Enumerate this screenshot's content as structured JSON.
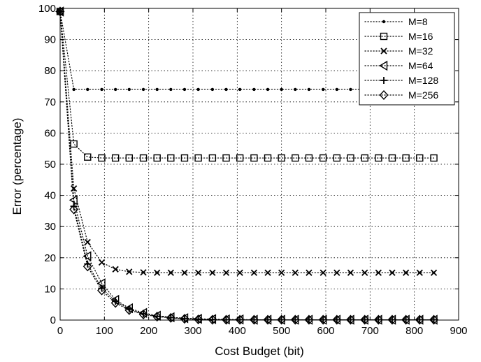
{
  "chart_data": {
    "type": "line",
    "title": "",
    "xlabel": "Cost Budget (bit)",
    "ylabel": "Error (percentage)",
    "xlim": [
      0,
      900
    ],
    "ylim": [
      0,
      100
    ],
    "xticks": [
      0,
      100,
      200,
      300,
      400,
      500,
      600,
      700,
      800,
      900
    ],
    "yticks": [
      0,
      10,
      20,
      30,
      40,
      50,
      60,
      70,
      80,
      90,
      100
    ],
    "grid": true,
    "legend_position": "top-right",
    "x": [
      0,
      31,
      62,
      94,
      125,
      156,
      188,
      219,
      250,
      281,
      312,
      344,
      375,
      406,
      438,
      469,
      500,
      531,
      562,
      594,
      625,
      656,
      688,
      719,
      750,
      781,
      812,
      844
    ],
    "series": [
      {
        "name": "M=8",
        "marker": "dot",
        "values": [
          99,
          74,
          74,
          74,
          74,
          74,
          74,
          74,
          74,
          74,
          74,
          74,
          74,
          74,
          74,
          74,
          74,
          74,
          74,
          74,
          74,
          74,
          74,
          74,
          74,
          74,
          74,
          74
        ]
      },
      {
        "name": "M=16",
        "marker": "square",
        "values": [
          99,
          56.5,
          52.3,
          52,
          52,
          52,
          52,
          52,
          52,
          52,
          52,
          52,
          52,
          52,
          52,
          52,
          52,
          52,
          52,
          52,
          52,
          52,
          52,
          52,
          52,
          52,
          52,
          52
        ]
      },
      {
        "name": "M=32",
        "marker": "x",
        "values": [
          99,
          42.2,
          25,
          18.5,
          16.3,
          15.5,
          15.3,
          15.2,
          15.2,
          15.2,
          15.2,
          15.2,
          15.2,
          15.2,
          15.2,
          15.2,
          15.2,
          15.2,
          15.2,
          15.2,
          15.2,
          15.2,
          15.2,
          15.2,
          15.2,
          15.2,
          15.2,
          15.2
        ]
      },
      {
        "name": "M=64",
        "marker": "triangle-left",
        "values": [
          99,
          38.5,
          20.5,
          11.8,
          6.5,
          3.8,
          2.3,
          1.4,
          0.9,
          0.6,
          0.4,
          0.3,
          0.2,
          0.2,
          0.1,
          0.1,
          0.1,
          0.1,
          0.1,
          0.1,
          0.1,
          0.1,
          0.1,
          0.1,
          0.1,
          0.1,
          0.1,
          0.1
        ]
      },
      {
        "name": "M=128",
        "marker": "plus",
        "values": [
          99,
          36.5,
          18,
          10.2,
          6,
          3.5,
          2,
          1.2,
          0.8,
          0.5,
          0.3,
          0.2,
          0.1,
          0.1,
          0.1,
          0.1,
          0.1,
          0.1,
          0.1,
          0.1,
          0.1,
          0.1,
          0.1,
          0.1,
          0.1,
          0.1,
          0.1,
          0.1
        ]
      },
      {
        "name": "M=256",
        "marker": "diamond",
        "values": [
          99,
          35.5,
          17.2,
          9.5,
          5.5,
          3.2,
          1.8,
          1.1,
          0.7,
          0.4,
          0.2,
          0.1,
          0.1,
          0.1,
          0.1,
          0.1,
          0.1,
          0.1,
          0.1,
          0.1,
          0.1,
          0.1,
          0.1,
          0.1,
          0.1,
          0.1,
          0.1,
          0.1
        ]
      }
    ]
  }
}
